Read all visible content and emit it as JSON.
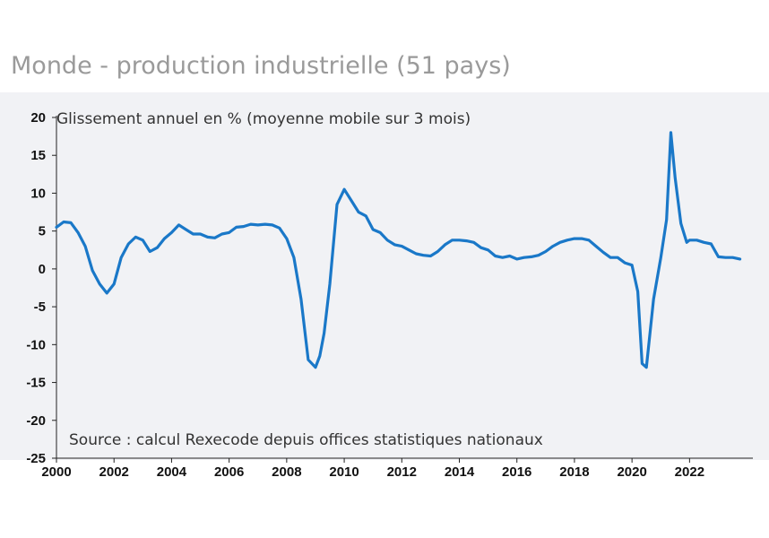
{
  "chart_data": {
    "type": "line",
    "title": "Monde - production industrielle (51 pays)",
    "subtitle": "Glissement annuel en % (moyenne mobile sur 3 mois)",
    "source": "Source : calcul Rexecode depuis offices statistiques nationaux",
    "xlabel": "",
    "ylabel": "",
    "xlim": [
      2000,
      2024.2
    ],
    "ylim": [
      -25,
      20
    ],
    "x_ticks": [
      2000,
      2002,
      2004,
      2006,
      2008,
      2010,
      2012,
      2014,
      2016,
      2018,
      2020,
      2022
    ],
    "x_tick_labels": [
      "2000",
      "2002",
      "2004",
      "2006",
      "2008",
      "2010",
      "2012",
      "2014",
      "2016",
      "2018",
      "2020",
      "2022"
    ],
    "y_ticks": [
      -25,
      -20,
      -15,
      -10,
      -5,
      0,
      5,
      10,
      15,
      20
    ],
    "y_tick_labels": [
      "-25",
      "-20",
      "-15",
      "-10",
      "-5",
      "0",
      "5",
      "10",
      "15",
      "20"
    ],
    "grid": false,
    "line_color": "#1a78c8",
    "series": [
      {
        "name": "",
        "x": [
          2000.0,
          2000.25,
          2000.5,
          2000.75,
          2001.0,
          2001.25,
          2001.5,
          2001.75,
          2002.0,
          2002.25,
          2002.5,
          2002.75,
          2003.0,
          2003.25,
          2003.5,
          2003.75,
          2004.0,
          2004.25,
          2004.5,
          2004.75,
          2005.0,
          2005.25,
          2005.5,
          2005.75,
          2006.0,
          2006.25,
          2006.5,
          2006.75,
          2007.0,
          2007.25,
          2007.5,
          2007.75,
          2008.0,
          2008.25,
          2008.5,
          2008.75,
          2009.0,
          2009.15,
          2009.3,
          2009.5,
          2009.75,
          2010.0,
          2010.25,
          2010.5,
          2010.75,
          2011.0,
          2011.25,
          2011.5,
          2011.75,
          2012.0,
          2012.25,
          2012.5,
          2012.75,
          2013.0,
          2013.25,
          2013.5,
          2013.75,
          2014.0,
          2014.25,
          2014.5,
          2014.75,
          2015.0,
          2015.25,
          2015.5,
          2015.75,
          2016.0,
          2016.25,
          2016.5,
          2016.75,
          2017.0,
          2017.25,
          2017.5,
          2017.75,
          2018.0,
          2018.25,
          2018.5,
          2018.75,
          2019.0,
          2019.25,
          2019.5,
          2019.75,
          2020.0,
          2020.2,
          2020.35,
          2020.5,
          2020.75,
          2021.0,
          2021.2,
          2021.35,
          2021.5,
          2021.7,
          2021.9,
          2022.0,
          2022.25,
          2022.5,
          2022.75,
          2023.0,
          2023.25,
          2023.5,
          2023.75
        ],
        "y": [
          5.5,
          6.2,
          6.1,
          4.8,
          3.0,
          -0.2,
          -2.0,
          -3.2,
          -2.0,
          1.5,
          3.3,
          4.2,
          3.8,
          2.3,
          2.8,
          4.0,
          4.8,
          5.8,
          5.2,
          4.6,
          4.6,
          4.2,
          4.1,
          4.6,
          4.8,
          5.5,
          5.6,
          5.9,
          5.8,
          5.9,
          5.8,
          5.4,
          4.0,
          1.5,
          -4.0,
          -12.0,
          -13.0,
          -11.5,
          -8.5,
          -2.0,
          8.5,
          10.5,
          9.0,
          7.5,
          7.0,
          5.2,
          4.8,
          3.8,
          3.2,
          3.0,
          2.5,
          2.0,
          1.8,
          1.7,
          2.3,
          3.2,
          3.8,
          3.8,
          3.7,
          3.5,
          2.8,
          2.5,
          1.7,
          1.5,
          1.7,
          1.3,
          1.5,
          1.6,
          1.8,
          2.3,
          3.0,
          3.5,
          3.8,
          4.0,
          4.0,
          3.8,
          3.0,
          2.2,
          1.5,
          1.5,
          0.8,
          0.5,
          -3.0,
          -12.5,
          -13.0,
          -4.0,
          1.5,
          6.5,
          18.0,
          12.0,
          6.0,
          3.5,
          3.8,
          3.8,
          3.5,
          3.3,
          1.6,
          1.5,
          1.5,
          1.3
        ]
      }
    ]
  }
}
